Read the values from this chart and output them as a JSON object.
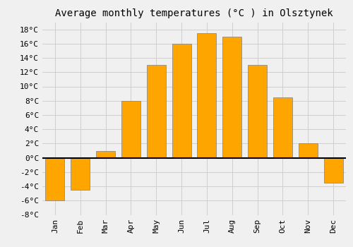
{
  "title": "Average monthly temperatures (°C ) in Olsztynek",
  "months": [
    "Jan",
    "Feb",
    "Mar",
    "Apr",
    "May",
    "Jun",
    "Jul",
    "Aug",
    "Sep",
    "Oct",
    "Nov",
    "Dec"
  ],
  "values": [
    -6,
    -4.5,
    1,
    8,
    13,
    16,
    17.5,
    17,
    13,
    8.5,
    2,
    -3.5
  ],
  "bar_color": "#FFA500",
  "bar_edge_color": "#808080",
  "ylim": [
    -8,
    19
  ],
  "yticks": [
    -8,
    -6,
    -4,
    -2,
    0,
    2,
    4,
    6,
    8,
    10,
    12,
    14,
    16,
    18
  ],
  "ytick_labels": [
    "-8°C",
    "-6°C",
    "-4°C",
    "-2°C",
    "0°C",
    "2°C",
    "4°C",
    "6°C",
    "8°C",
    "10°C",
    "12°C",
    "14°C",
    "16°C",
    "18°C"
  ],
  "background_color": "#f0f0f0",
  "grid_color": "#d0d0d0",
  "title_fontsize": 10,
  "tick_fontsize": 8,
  "bar_width": 0.75
}
